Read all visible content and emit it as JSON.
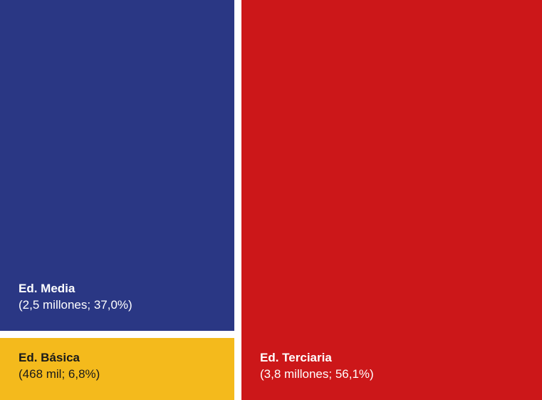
{
  "chart_data": {
    "type": "treemap",
    "title": "",
    "unit": "",
    "segments": [
      {
        "name": "Ed. Media",
        "detail": "(2,5 millones; 37,0%)",
        "value": 2.5,
        "percent": 37.0,
        "color": "#2a3784",
        "text_color": "#ffffff"
      },
      {
        "name": "Ed. Básica",
        "detail": "(468 mil; 6,8%)",
        "value": 0.468,
        "percent": 6.8,
        "color": "#f4ba1c",
        "text_color": "#1a1a1a"
      },
      {
        "name": "Ed. Terciaria",
        "detail": "(3,8 millones; 56,1%)",
        "value": 3.8,
        "percent": 56.1,
        "color": "#cc1719",
        "text_color": "#ffffff"
      }
    ]
  }
}
